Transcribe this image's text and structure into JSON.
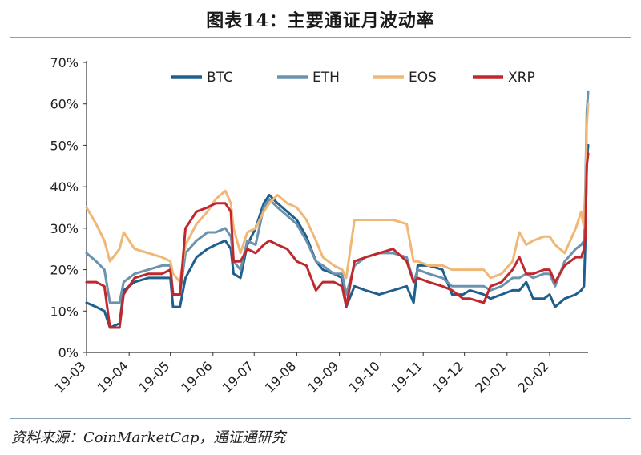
{
  "page": {
    "title": "图表14：主要通证月波动率",
    "source": "资料来源：CoinMarketCap，通证通研究"
  },
  "chart_data": {
    "type": "line",
    "title": "",
    "xlabel": "",
    "ylabel": "",
    "y_format": "percent",
    "ylim": [
      0,
      70
    ],
    "yticks": [
      0,
      10,
      20,
      30,
      40,
      50,
      60,
      70
    ],
    "ytick_labels": [
      "0%",
      "10%",
      "20%",
      "30%",
      "40%",
      "50%",
      "60%",
      "70%"
    ],
    "xlim": [
      "2019-03-01",
      "2020-02-29"
    ],
    "xticks": [
      "2019-03-01",
      "2019-04-01",
      "2019-05-01",
      "2019-06-01",
      "2019-07-01",
      "2019-08-01",
      "2019-09-01",
      "2019-10-01",
      "2019-11-01",
      "2019-12-01",
      "2020-01-01",
      "2020-02-01"
    ],
    "xtick_labels": [
      "19-03",
      "19-04",
      "19-05",
      "19-06",
      "19-07",
      "19-08",
      "19-09",
      "19-10",
      "19-11",
      "19-12",
      "20-01",
      "20-02"
    ],
    "grid": false,
    "legend_position": "top",
    "series": [
      {
        "name": "BTC",
        "color": "#1f5f8b",
        "points": [
          [
            "2019-03-01",
            12
          ],
          [
            "2019-03-08",
            11
          ],
          [
            "2019-03-14",
            10
          ],
          [
            "2019-03-18",
            6
          ],
          [
            "2019-03-25",
            7
          ],
          [
            "2019-03-28",
            15
          ],
          [
            "2019-04-05",
            17
          ],
          [
            "2019-04-15",
            18
          ],
          [
            "2019-04-25",
            18
          ],
          [
            "2019-05-01",
            18
          ],
          [
            "2019-05-03",
            11
          ],
          [
            "2019-05-08",
            11
          ],
          [
            "2019-05-12",
            18
          ],
          [
            "2019-05-20",
            23
          ],
          [
            "2019-05-28",
            25
          ],
          [
            "2019-06-03",
            26
          ],
          [
            "2019-06-10",
            27
          ],
          [
            "2019-06-14",
            25
          ],
          [
            "2019-06-16",
            19
          ],
          [
            "2019-06-21",
            18
          ],
          [
            "2019-06-26",
            26
          ],
          [
            "2019-07-02",
            30
          ],
          [
            "2019-07-08",
            36
          ],
          [
            "2019-07-12",
            38
          ],
          [
            "2019-07-18",
            36
          ],
          [
            "2019-07-25",
            34
          ],
          [
            "2019-08-01",
            32
          ],
          [
            "2019-08-08",
            28
          ],
          [
            "2019-08-15",
            22
          ],
          [
            "2019-08-20",
            20
          ],
          [
            "2019-08-28",
            19
          ],
          [
            "2019-09-03",
            18
          ],
          [
            "2019-09-06",
            11
          ],
          [
            "2019-09-12",
            16
          ],
          [
            "2019-09-20",
            15
          ],
          [
            "2019-09-30",
            14
          ],
          [
            "2019-10-10",
            15
          ],
          [
            "2019-10-20",
            16
          ],
          [
            "2019-10-25",
            12
          ],
          [
            "2019-10-28",
            21
          ],
          [
            "2019-11-05",
            21
          ],
          [
            "2019-11-15",
            20
          ],
          [
            "2019-11-22",
            14
          ],
          [
            "2019-11-30",
            14
          ],
          [
            "2019-12-05",
            15
          ],
          [
            "2019-12-15",
            14
          ],
          [
            "2019-12-20",
            13
          ],
          [
            "2019-12-28",
            14
          ],
          [
            "2020-01-05",
            15
          ],
          [
            "2020-01-10",
            15
          ],
          [
            "2020-01-15",
            17
          ],
          [
            "2020-01-20",
            13
          ],
          [
            "2020-01-28",
            13
          ],
          [
            "2020-02-01",
            14
          ],
          [
            "2020-02-05",
            11
          ],
          [
            "2020-02-12",
            13
          ],
          [
            "2020-02-20",
            14
          ],
          [
            "2020-02-24",
            15
          ],
          [
            "2020-02-26",
            16
          ],
          [
            "2020-02-27",
            27
          ],
          [
            "2020-02-28",
            46
          ],
          [
            "2020-02-29",
            50
          ]
        ]
      },
      {
        "name": "ETH",
        "color": "#6b93ad",
        "points": [
          [
            "2019-03-01",
            24
          ],
          [
            "2019-03-08",
            22
          ],
          [
            "2019-03-14",
            20
          ],
          [
            "2019-03-18",
            12
          ],
          [
            "2019-03-25",
            12
          ],
          [
            "2019-03-28",
            17
          ],
          [
            "2019-04-05",
            19
          ],
          [
            "2019-04-15",
            20
          ],
          [
            "2019-04-25",
            21
          ],
          [
            "2019-05-01",
            21
          ],
          [
            "2019-05-03",
            14
          ],
          [
            "2019-05-08",
            14
          ],
          [
            "2019-05-12",
            24
          ],
          [
            "2019-05-20",
            27
          ],
          [
            "2019-05-28",
            29
          ],
          [
            "2019-06-03",
            29
          ],
          [
            "2019-06-10",
            30
          ],
          [
            "2019-06-14",
            28
          ],
          [
            "2019-06-16",
            22
          ],
          [
            "2019-06-21",
            20
          ],
          [
            "2019-06-26",
            27
          ],
          [
            "2019-07-02",
            26
          ],
          [
            "2019-07-08",
            35
          ],
          [
            "2019-07-12",
            37
          ],
          [
            "2019-07-18",
            35
          ],
          [
            "2019-07-25",
            33
          ],
          [
            "2019-08-01",
            31
          ],
          [
            "2019-08-08",
            27
          ],
          [
            "2019-08-15",
            22
          ],
          [
            "2019-08-20",
            21
          ],
          [
            "2019-08-28",
            19
          ],
          [
            "2019-09-03",
            19
          ],
          [
            "2019-09-06",
            14
          ],
          [
            "2019-09-12",
            21
          ],
          [
            "2019-09-20",
            23
          ],
          [
            "2019-09-30",
            24
          ],
          [
            "2019-10-10",
            24
          ],
          [
            "2019-10-20",
            23
          ],
          [
            "2019-10-25",
            17
          ],
          [
            "2019-10-28",
            20
          ],
          [
            "2019-11-05",
            19
          ],
          [
            "2019-11-15",
            18
          ],
          [
            "2019-11-22",
            16
          ],
          [
            "2019-11-30",
            16
          ],
          [
            "2019-12-05",
            16
          ],
          [
            "2019-12-15",
            16
          ],
          [
            "2019-12-20",
            15
          ],
          [
            "2019-12-28",
            16
          ],
          [
            "2020-01-05",
            18
          ],
          [
            "2020-01-10",
            18
          ],
          [
            "2020-01-15",
            19
          ],
          [
            "2020-01-20",
            18
          ],
          [
            "2020-01-28",
            19
          ],
          [
            "2020-02-01",
            19
          ],
          [
            "2020-02-05",
            16
          ],
          [
            "2020-02-12",
            22
          ],
          [
            "2020-02-20",
            25
          ],
          [
            "2020-02-24",
            26
          ],
          [
            "2020-02-26",
            27
          ],
          [
            "2020-02-27",
            40
          ],
          [
            "2020-02-28",
            58
          ],
          [
            "2020-02-29",
            63
          ]
        ]
      },
      {
        "name": "EOS",
        "color": "#f0b876",
        "points": [
          [
            "2019-03-01",
            35
          ],
          [
            "2019-03-08",
            31
          ],
          [
            "2019-03-14",
            27
          ],
          [
            "2019-03-18",
            22
          ],
          [
            "2019-03-25",
            25
          ],
          [
            "2019-03-28",
            29
          ],
          [
            "2019-04-05",
            25
          ],
          [
            "2019-04-15",
            24
          ],
          [
            "2019-04-25",
            23
          ],
          [
            "2019-05-01",
            22
          ],
          [
            "2019-05-03",
            19
          ],
          [
            "2019-05-08",
            17
          ],
          [
            "2019-05-12",
            26
          ],
          [
            "2019-05-20",
            31
          ],
          [
            "2019-05-28",
            34
          ],
          [
            "2019-06-03",
            37
          ],
          [
            "2019-06-10",
            39
          ],
          [
            "2019-06-14",
            36
          ],
          [
            "2019-06-16",
            30
          ],
          [
            "2019-06-21",
            24
          ],
          [
            "2019-06-26",
            29
          ],
          [
            "2019-07-02",
            30
          ],
          [
            "2019-07-08",
            34
          ],
          [
            "2019-07-12",
            36
          ],
          [
            "2019-07-18",
            38
          ],
          [
            "2019-07-25",
            36
          ],
          [
            "2019-08-01",
            35
          ],
          [
            "2019-08-08",
            32
          ],
          [
            "2019-08-15",
            27
          ],
          [
            "2019-08-20",
            23
          ],
          [
            "2019-08-28",
            21
          ],
          [
            "2019-09-03",
            20
          ],
          [
            "2019-09-06",
            18
          ],
          [
            "2019-09-12",
            32
          ],
          [
            "2019-09-20",
            32
          ],
          [
            "2019-09-30",
            32
          ],
          [
            "2019-10-10",
            32
          ],
          [
            "2019-10-20",
            31
          ],
          [
            "2019-10-25",
            22
          ],
          [
            "2019-10-28",
            22
          ],
          [
            "2019-11-05",
            21
          ],
          [
            "2019-11-15",
            21
          ],
          [
            "2019-11-22",
            20
          ],
          [
            "2019-11-30",
            20
          ],
          [
            "2019-12-05",
            20
          ],
          [
            "2019-12-15",
            20
          ],
          [
            "2019-12-20",
            18
          ],
          [
            "2019-12-28",
            19
          ],
          [
            "2020-01-05",
            22
          ],
          [
            "2020-01-10",
            29
          ],
          [
            "2020-01-15",
            26
          ],
          [
            "2020-01-20",
            27
          ],
          [
            "2020-01-28",
            28
          ],
          [
            "2020-02-01",
            28
          ],
          [
            "2020-02-05",
            26
          ],
          [
            "2020-02-12",
            24
          ],
          [
            "2020-02-20",
            30
          ],
          [
            "2020-02-24",
            34
          ],
          [
            "2020-02-26",
            30
          ],
          [
            "2020-02-27",
            35
          ],
          [
            "2020-02-28",
            55
          ],
          [
            "2020-02-29",
            60
          ]
        ]
      },
      {
        "name": "XRP",
        "color": "#c0282d",
        "points": [
          [
            "2019-03-01",
            17
          ],
          [
            "2019-03-08",
            17
          ],
          [
            "2019-03-14",
            16
          ],
          [
            "2019-03-18",
            6
          ],
          [
            "2019-03-25",
            6
          ],
          [
            "2019-03-28",
            14
          ],
          [
            "2019-04-05",
            18
          ],
          [
            "2019-04-15",
            19
          ],
          [
            "2019-04-25",
            19
          ],
          [
            "2019-05-01",
            20
          ],
          [
            "2019-05-03",
            14
          ],
          [
            "2019-05-08",
            14
          ],
          [
            "2019-05-12",
            30
          ],
          [
            "2019-05-20",
            34
          ],
          [
            "2019-05-28",
            35
          ],
          [
            "2019-06-03",
            36
          ],
          [
            "2019-06-10",
            36
          ],
          [
            "2019-06-14",
            34
          ],
          [
            "2019-06-16",
            22
          ],
          [
            "2019-06-21",
            22
          ],
          [
            "2019-06-26",
            25
          ],
          [
            "2019-07-02",
            24
          ],
          [
            "2019-07-08",
            26
          ],
          [
            "2019-07-12",
            27
          ],
          [
            "2019-07-18",
            26
          ],
          [
            "2019-07-25",
            25
          ],
          [
            "2019-08-01",
            22
          ],
          [
            "2019-08-08",
            21
          ],
          [
            "2019-08-15",
            15
          ],
          [
            "2019-08-20",
            17
          ],
          [
            "2019-08-28",
            17
          ],
          [
            "2019-09-03",
            16
          ],
          [
            "2019-09-06",
            11
          ],
          [
            "2019-09-12",
            22
          ],
          [
            "2019-09-20",
            23
          ],
          [
            "2019-09-30",
            24
          ],
          [
            "2019-10-10",
            25
          ],
          [
            "2019-10-20",
            22
          ],
          [
            "2019-10-25",
            17
          ],
          [
            "2019-10-28",
            18
          ],
          [
            "2019-11-05",
            17
          ],
          [
            "2019-11-15",
            16
          ],
          [
            "2019-11-22",
            15
          ],
          [
            "2019-11-30",
            13
          ],
          [
            "2019-12-05",
            13
          ],
          [
            "2019-12-15",
            12
          ],
          [
            "2019-12-20",
            16
          ],
          [
            "2019-12-28",
            17
          ],
          [
            "2020-01-05",
            20
          ],
          [
            "2020-01-10",
            23
          ],
          [
            "2020-01-15",
            19
          ],
          [
            "2020-01-20",
            19
          ],
          [
            "2020-01-28",
            20
          ],
          [
            "2020-02-01",
            20
          ],
          [
            "2020-02-05",
            17
          ],
          [
            "2020-02-12",
            21
          ],
          [
            "2020-02-20",
            23
          ],
          [
            "2020-02-24",
            23
          ],
          [
            "2020-02-26",
            25
          ],
          [
            "2020-02-27",
            28
          ],
          [
            "2020-02-28",
            45
          ],
          [
            "2020-02-29",
            48
          ]
        ]
      }
    ]
  }
}
